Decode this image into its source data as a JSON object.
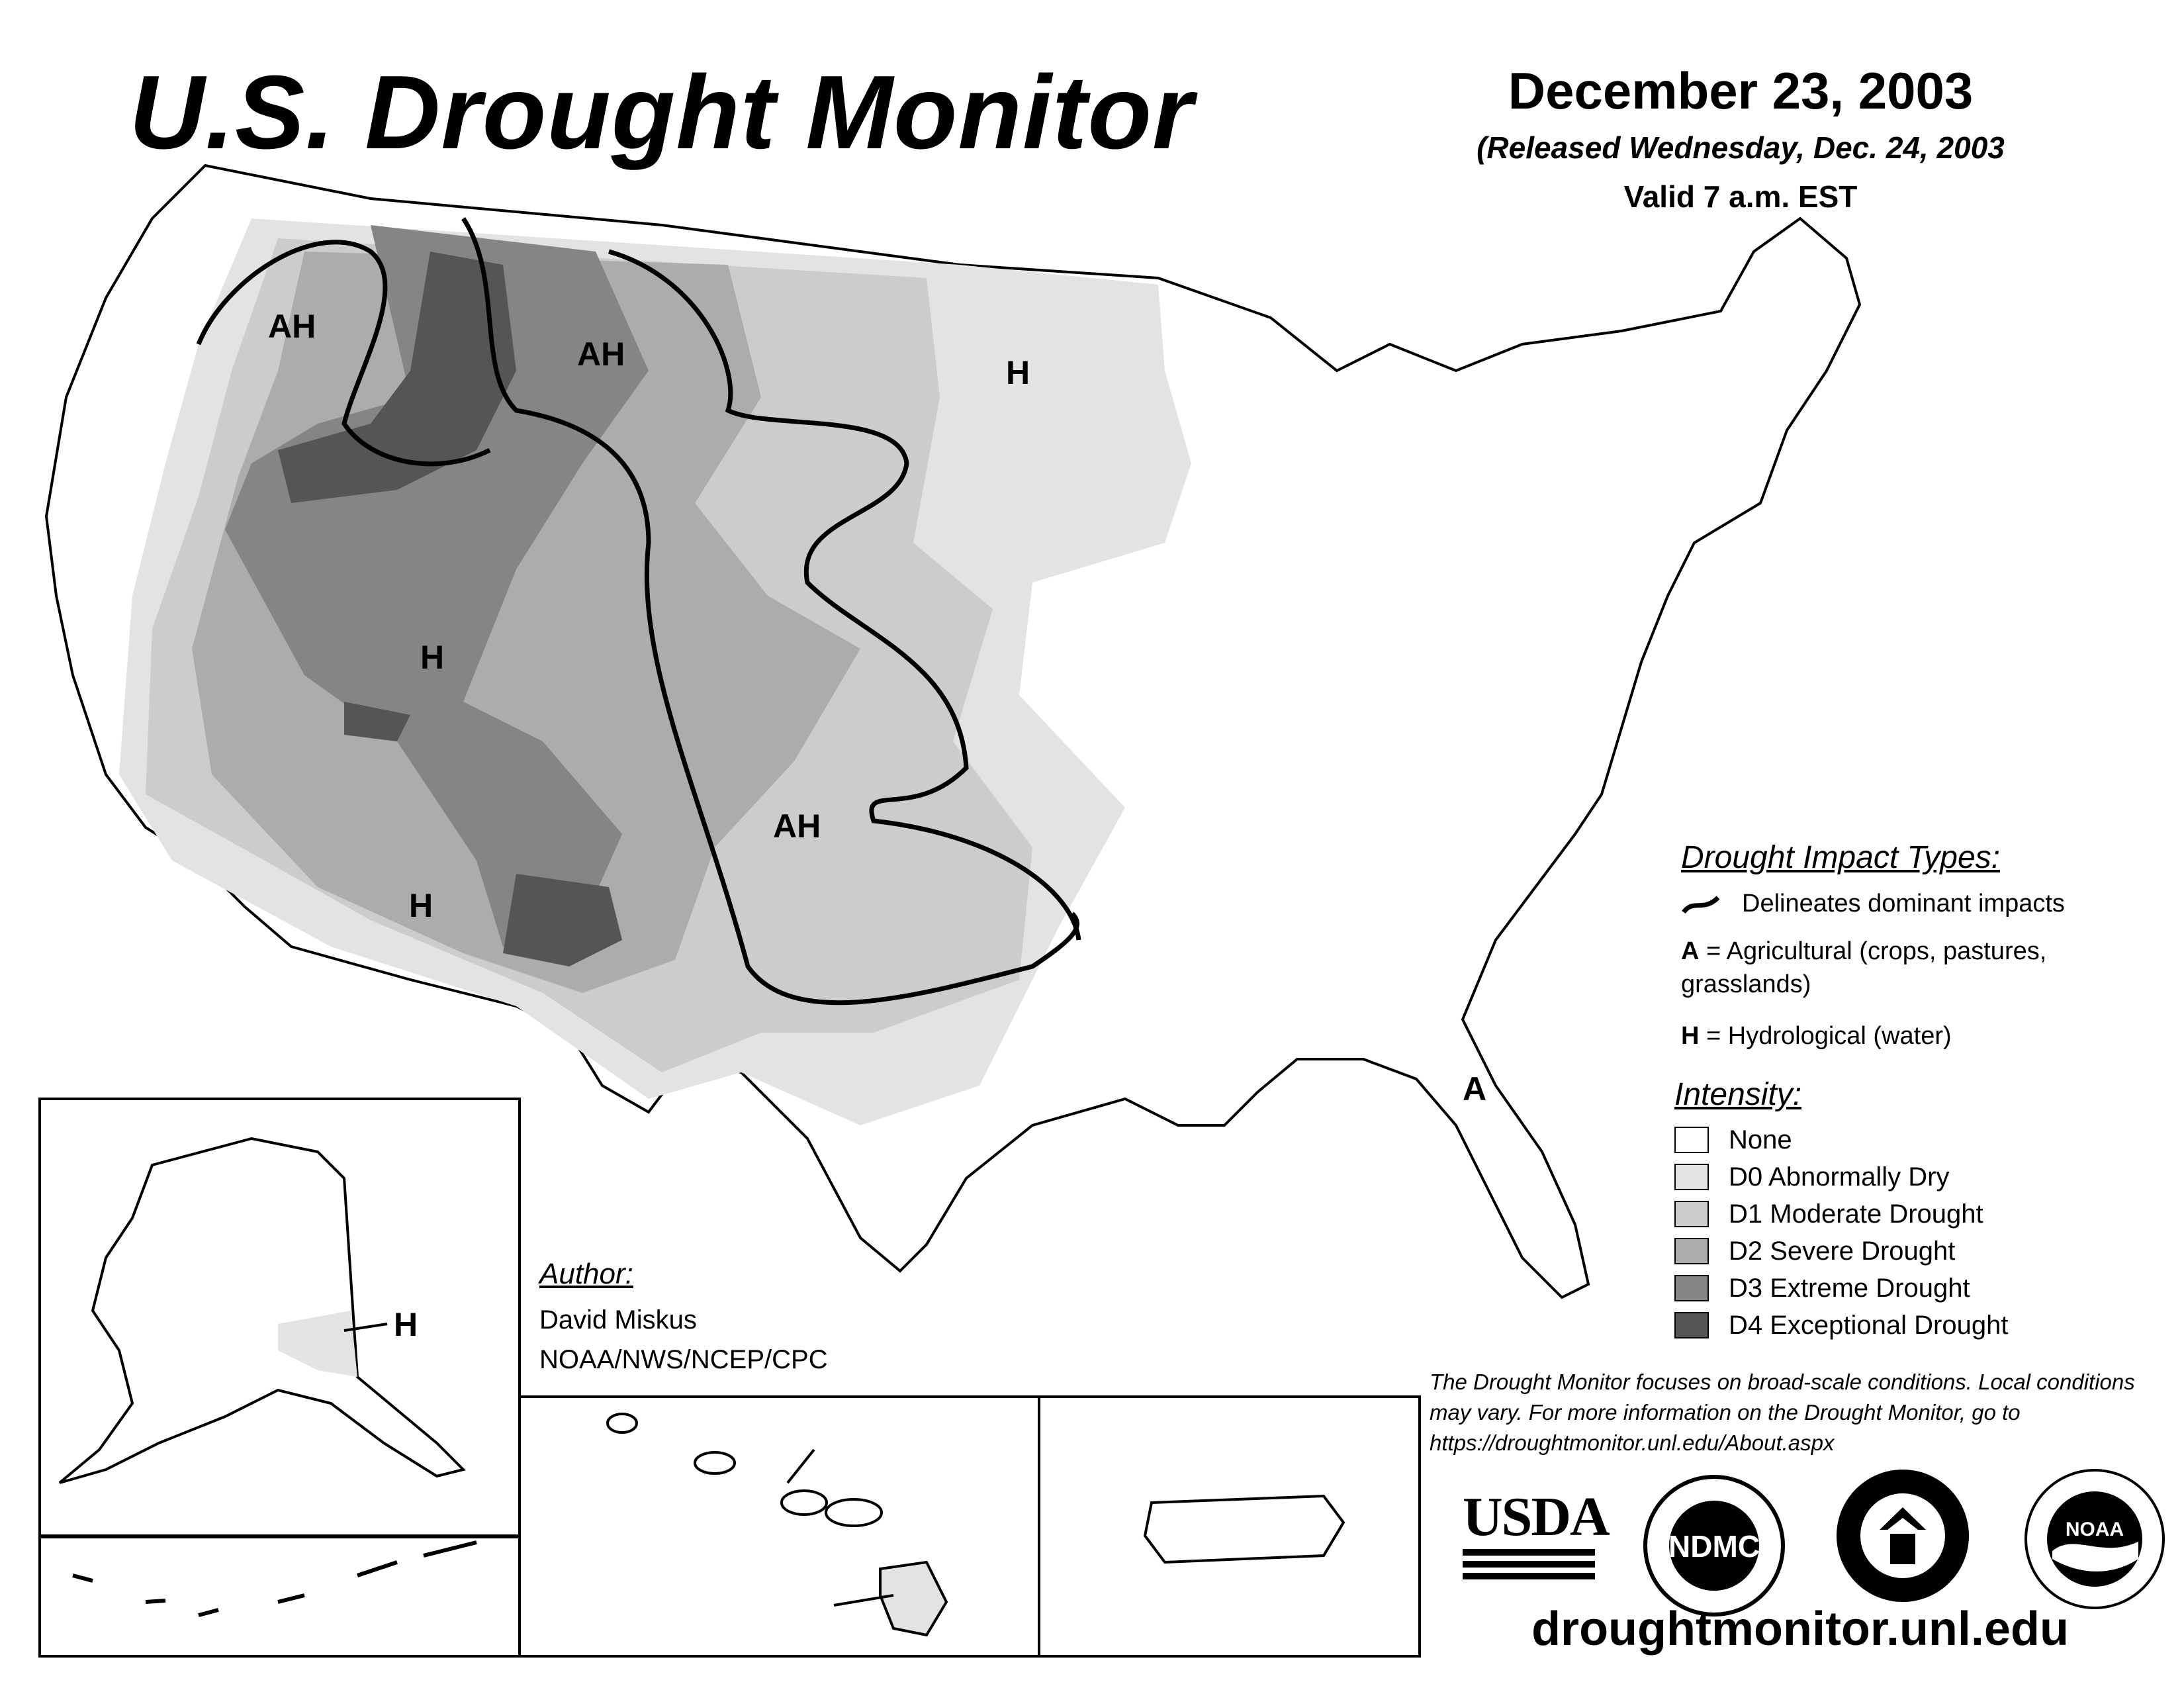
{
  "header": {
    "title": "U.S. Drought Monitor",
    "date": "December 23, 2003",
    "released": "(Released Wednesday, Dec. 24, 2003",
    "valid": "Valid 7 a.m. EST"
  },
  "map_labels": [
    "AH",
    "AH",
    "H",
    "H",
    "H",
    "AH",
    "A",
    "H"
  ],
  "impact_types": {
    "title": "Drought Impact Types:",
    "delineates": "Delineates dominant impacts",
    "agri_code": "A",
    "agri_text": " = Agricultural (crops, pastures,",
    "agri_text2": "grasslands)",
    "hydro_code": "H",
    "hydro_text": " = Hydrological (water)"
  },
  "intensity": {
    "title": "Intensity:",
    "levels": [
      {
        "label": "None",
        "color": "#ffffff"
      },
      {
        "label": "D0 Abnormally Dry",
        "color": "#e3e3e3"
      },
      {
        "label": "D1 Moderate Drought",
        "color": "#cccccc"
      },
      {
        "label": "D2 Severe Drought",
        "color": "#acacac"
      },
      {
        "label": "D3 Extreme Drought",
        "color": "#858585"
      },
      {
        "label": "D4 Exceptional Drought",
        "color": "#555555"
      }
    ]
  },
  "author": {
    "heading": "Author:",
    "name": "David Miskus",
    "org": "NOAA/NWS/NCEP/CPC"
  },
  "disclaimer": "The Drought Monitor focuses on broad-scale conditions. Local conditions may vary. For more information on the Drought Monitor, go to https://droughtmonitor.unl.edu/About.aspx",
  "logos": {
    "usda": "USDA",
    "ndmc": "NDMC",
    "noaa": "NOAA"
  },
  "website": "droughtmonitor.unl.edu"
}
